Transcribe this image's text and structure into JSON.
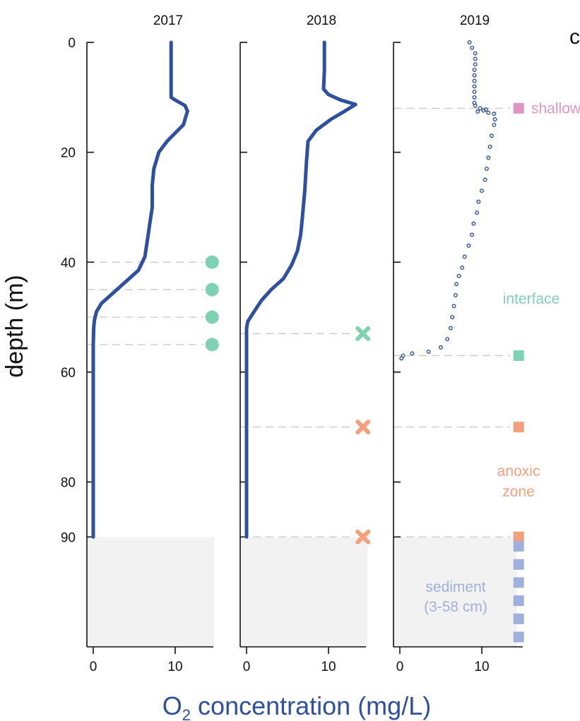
{
  "chart_data": {
    "type": "line",
    "panel_letter": "c",
    "ylabel": "depth (m)",
    "xlabel_prefix": "O",
    "xlabel_sub": "2",
    "xlabel_suffix": " concentration (mg/L)",
    "depth_ticks": [
      0,
      20,
      40,
      60,
      80,
      90
    ],
    "x_ticks": [
      0,
      10
    ],
    "xlim": [
      -1,
      15
    ],
    "ylim": [
      0,
      110
    ],
    "sediment_depth": 90,
    "colors": {
      "profile": "#2f4f9f",
      "interface": "#7fd1b3",
      "anoxic": "#f4a07c",
      "shallow": "#e295c4",
      "sediment": "#9fb0dc",
      "sediment_bg": "#f2f2f2",
      "dashed": "#c8c8c8"
    },
    "panels": [
      {
        "title": "2017",
        "style": "line",
        "profile": [
          [
            9.5,
            0
          ],
          [
            9.5,
            6
          ],
          [
            9.5,
            10
          ],
          [
            10,
            10.5
          ],
          [
            11.2,
            11.5
          ],
          [
            11.5,
            12.5
          ],
          [
            11,
            15
          ],
          [
            10,
            16.5
          ],
          [
            9,
            18
          ],
          [
            8,
            20
          ],
          [
            7.4,
            23
          ],
          [
            7.2,
            26
          ],
          [
            7.2,
            30
          ],
          [
            6.9,
            33
          ],
          [
            6.6,
            36
          ],
          [
            6.3,
            39
          ],
          [
            5.5,
            41.5
          ],
          [
            4,
            43.5
          ],
          [
            2.5,
            45.5
          ],
          [
            1,
            47.5
          ],
          [
            0.4,
            49
          ],
          [
            0.15,
            50.5
          ],
          [
            0.05,
            52
          ],
          [
            0,
            55
          ],
          [
            0,
            60
          ],
          [
            0,
            70
          ],
          [
            0,
            80
          ],
          [
            0,
            90
          ]
        ],
        "markers": [
          {
            "depth": 40,
            "shape": "circle",
            "color": "interface",
            "x": 14.5
          },
          {
            "depth": 45,
            "shape": "circle",
            "color": "interface",
            "x": 14.5
          },
          {
            "depth": 50,
            "shape": "circle",
            "color": "interface",
            "x": 14.5
          },
          {
            "depth": 55,
            "shape": "circle",
            "color": "interface",
            "x": 14.5
          }
        ]
      },
      {
        "title": "2018",
        "style": "line",
        "profile": [
          [
            9.5,
            0
          ],
          [
            9.5,
            5
          ],
          [
            9.4,
            8.5
          ],
          [
            10,
            9.5
          ],
          [
            11.5,
            10.5
          ],
          [
            13.3,
            11.3
          ],
          [
            12,
            12.5
          ],
          [
            10.3,
            14
          ],
          [
            8.5,
            16
          ],
          [
            7.5,
            18
          ],
          [
            7.3,
            22
          ],
          [
            7.1,
            27
          ],
          [
            6.8,
            32
          ],
          [
            6.6,
            35
          ],
          [
            6.2,
            38
          ],
          [
            5.5,
            40.5
          ],
          [
            4.5,
            43
          ],
          [
            3,
            45
          ],
          [
            1.8,
            47
          ],
          [
            0.7,
            49.5
          ],
          [
            0.15,
            50.8
          ],
          [
            0,
            52
          ],
          [
            0,
            60
          ],
          [
            0,
            70
          ],
          [
            0,
            80
          ],
          [
            0,
            90
          ]
        ],
        "markers": [
          {
            "depth": 53,
            "shape": "cross",
            "color": "interface",
            "x": 14.2
          },
          {
            "depth": 70,
            "shape": "cross",
            "color": "anoxic",
            "x": 14.2
          },
          {
            "depth": 90,
            "shape": "cross",
            "color": "anoxic",
            "x": 14.2
          }
        ]
      },
      {
        "title": "2019",
        "style": "points",
        "profile": [
          [
            8.5,
            0
          ],
          [
            8.8,
            1
          ],
          [
            9.2,
            2
          ],
          [
            9.2,
            3
          ],
          [
            9.2,
            4
          ],
          [
            9.1,
            5
          ],
          [
            9.1,
            6
          ],
          [
            9.1,
            7
          ],
          [
            9.1,
            8
          ],
          [
            9.1,
            9
          ],
          [
            9.1,
            10
          ],
          [
            9.1,
            11
          ],
          [
            9.2,
            11.5
          ],
          [
            9.8,
            12
          ],
          [
            10.5,
            12.2
          ],
          [
            10.2,
            12.4
          ],
          [
            9.5,
            12.6
          ],
          [
            10.8,
            12.8
          ],
          [
            11.5,
            13
          ],
          [
            11.6,
            14
          ],
          [
            11.5,
            15
          ],
          [
            11.2,
            17
          ],
          [
            11,
            19
          ],
          [
            10.8,
            21
          ],
          [
            10.6,
            23
          ],
          [
            10.4,
            25
          ],
          [
            10,
            27
          ],
          [
            9.6,
            29
          ],
          [
            9.4,
            31
          ],
          [
            9.0,
            33
          ],
          [
            8.8,
            35
          ],
          [
            8.4,
            37
          ],
          [
            7.9,
            39
          ],
          [
            7.6,
            41
          ],
          [
            7.2,
            42.5
          ],
          [
            6.9,
            44
          ],
          [
            6.8,
            46
          ],
          [
            6.6,
            48
          ],
          [
            6.4,
            50
          ],
          [
            6.2,
            52
          ],
          [
            5.8,
            54
          ],
          [
            5,
            55.5
          ],
          [
            3.5,
            56.3
          ],
          [
            1.5,
            56.6
          ],
          [
            0.4,
            57
          ],
          [
            0.2,
            57.5
          ]
        ],
        "markers": [
          {
            "depth": 12,
            "shape": "square",
            "color": "shallow",
            "x": 14.5
          },
          {
            "depth": 57,
            "shape": "square",
            "color": "interface",
            "x": 14.5
          },
          {
            "depth": 70,
            "shape": "square",
            "color": "anoxic",
            "x": 14.5
          },
          {
            "depth": 90,
            "shape": "square",
            "color": "anoxic",
            "x": 14.5
          },
          {
            "depth": 91.7,
            "shape": "square",
            "color": "sediment",
            "x": 14.5
          },
          {
            "depth": 95,
            "shape": "square",
            "color": "sediment",
            "x": 14.5
          },
          {
            "depth": 98.3,
            "shape": "square",
            "color": "sediment",
            "x": 14.5
          },
          {
            "depth": 101.6,
            "shape": "square",
            "color": "sediment",
            "x": 14.5
          },
          {
            "depth": 104.9,
            "shape": "square",
            "color": "sediment",
            "x": 14.5
          },
          {
            "depth": 108.2,
            "shape": "square",
            "color": "sediment",
            "x": 14.5
          }
        ]
      }
    ],
    "annotations": [
      {
        "text": "shallow",
        "color": "shallow",
        "anchor": "panel3-right",
        "depth": 12
      },
      {
        "text": "interface",
        "color": "interface",
        "anchor": "panel3-right",
        "depth": 46
      },
      {
        "text": "anoxic",
        "color": "anoxic",
        "anchor": "panel3-right",
        "depth": 78
      },
      {
        "text": "zone",
        "color": "anoxic",
        "anchor": "panel3-right",
        "depth": 82
      },
      {
        "text": "sediment",
        "color": "sediment",
        "anchor": "panel3-right",
        "depth": 99
      },
      {
        "text": "(3-58 cm)",
        "color": "sediment",
        "anchor": "panel3-right",
        "depth": 103
      }
    ]
  }
}
